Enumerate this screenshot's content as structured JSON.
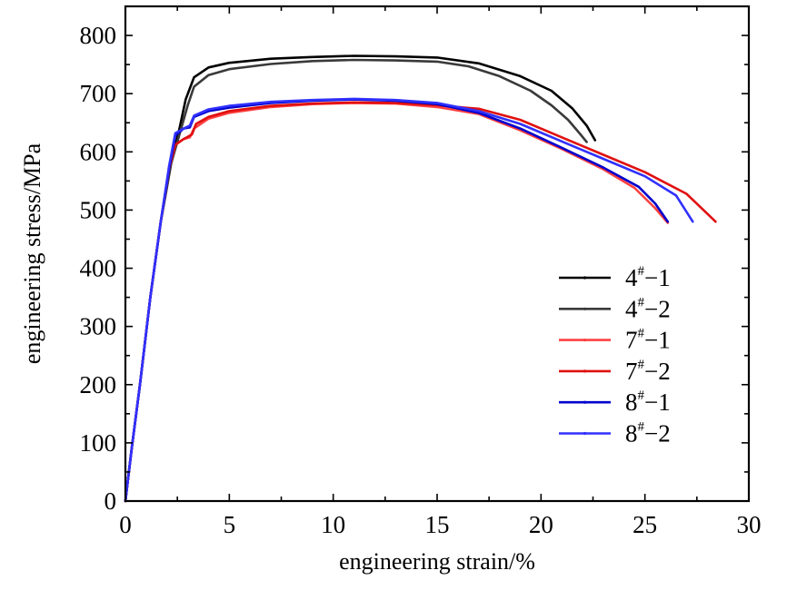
{
  "chart_data": {
    "type": "line",
    "title": "",
    "xlabel": "engineering strain/%",
    "ylabel": "engineering stress/MPa",
    "xlim": [
      0,
      30
    ],
    "ylim": [
      0,
      850
    ],
    "xticks": [
      0,
      5,
      10,
      15,
      20,
      25,
      30
    ],
    "yticks": [
      0,
      100,
      200,
      300,
      400,
      500,
      600,
      700,
      800
    ],
    "grid": false,
    "legend_position": "lower-right",
    "series": [
      {
        "name": "4#−1",
        "base": "4",
        "suffix": "−1",
        "color": "#000000",
        "points": [
          [
            0,
            0
          ],
          [
            0.3,
            90
          ],
          [
            0.7,
            200
          ],
          [
            1.2,
            350
          ],
          [
            1.7,
            480
          ],
          [
            2.2,
            580
          ],
          [
            2.6,
            640
          ],
          [
            2.9,
            690
          ],
          [
            3.3,
            728
          ],
          [
            4,
            745
          ],
          [
            5,
            753
          ],
          [
            7,
            760
          ],
          [
            9,
            763
          ],
          [
            11,
            765
          ],
          [
            13,
            764
          ],
          [
            15,
            762
          ],
          [
            17,
            752
          ],
          [
            19,
            730
          ],
          [
            20.5,
            705
          ],
          [
            21.5,
            675
          ],
          [
            22.2,
            645
          ],
          [
            22.6,
            620
          ]
        ]
      },
      {
        "name": "4#−2",
        "base": "4",
        "suffix": "−2",
        "color": "#3a3a3a",
        "points": [
          [
            0,
            0
          ],
          [
            0.3,
            90
          ],
          [
            0.7,
            200
          ],
          [
            1.2,
            350
          ],
          [
            1.7,
            480
          ],
          [
            2.2,
            580
          ],
          [
            2.6,
            630
          ],
          [
            3,
            680
          ],
          [
            3.3,
            712
          ],
          [
            4,
            732
          ],
          [
            5,
            742
          ],
          [
            7,
            751
          ],
          [
            9,
            756
          ],
          [
            11,
            758
          ],
          [
            13,
            757
          ],
          [
            15,
            755
          ],
          [
            16.5,
            747
          ],
          [
            18,
            730
          ],
          [
            19.5,
            705
          ],
          [
            20.5,
            680
          ],
          [
            21.3,
            655
          ],
          [
            21.9,
            630
          ],
          [
            22.2,
            617
          ]
        ]
      },
      {
        "name": "7#−1",
        "base": "7",
        "suffix": "−1",
        "color": "#ff4040",
        "points": [
          [
            0,
            0
          ],
          [
            0.3,
            90
          ],
          [
            0.7,
            200
          ],
          [
            1.2,
            350
          ],
          [
            1.7,
            480
          ],
          [
            2.1,
            570
          ],
          [
            2.4,
            612
          ],
          [
            2.8,
            622
          ],
          [
            3.1,
            625
          ],
          [
            3.3,
            640
          ],
          [
            4,
            657
          ],
          [
            5,
            667
          ],
          [
            7,
            677
          ],
          [
            9,
            682
          ],
          [
            11,
            684
          ],
          [
            13,
            683
          ],
          [
            15,
            677
          ],
          [
            17,
            665
          ],
          [
            19,
            637
          ],
          [
            21,
            605
          ],
          [
            23,
            570
          ],
          [
            24.5,
            538
          ],
          [
            25.5,
            503
          ],
          [
            26.1,
            478
          ]
        ]
      },
      {
        "name": "7#−2",
        "base": "7",
        "suffix": "−2",
        "color": "#e01010",
        "points": [
          [
            0,
            0
          ],
          [
            0.3,
            90
          ],
          [
            0.7,
            200
          ],
          [
            1.2,
            350
          ],
          [
            1.7,
            480
          ],
          [
            2.1,
            570
          ],
          [
            2.4,
            612
          ],
          [
            2.8,
            622
          ],
          [
            3.2,
            630
          ],
          [
            3.4,
            648
          ],
          [
            4,
            660
          ],
          [
            5,
            670
          ],
          [
            7,
            679
          ],
          [
            9,
            683
          ],
          [
            11,
            685
          ],
          [
            13,
            684
          ],
          [
            15,
            680
          ],
          [
            17,
            674
          ],
          [
            19,
            655
          ],
          [
            21,
            625
          ],
          [
            23,
            595
          ],
          [
            25,
            565
          ],
          [
            27,
            528
          ],
          [
            28.4,
            480
          ]
        ]
      },
      {
        "name": "8#−1",
        "base": "8",
        "suffix": "−1",
        "color": "#0000cc",
        "points": [
          [
            0,
            0
          ],
          [
            0.3,
            90
          ],
          [
            0.7,
            200
          ],
          [
            1.2,
            350
          ],
          [
            1.7,
            480
          ],
          [
            2.1,
            570
          ],
          [
            2.4,
            628
          ],
          [
            2.8,
            640
          ],
          [
            3.1,
            642
          ],
          [
            3.3,
            660
          ],
          [
            4,
            670
          ],
          [
            5,
            676
          ],
          [
            7,
            684
          ],
          [
            9,
            688
          ],
          [
            11,
            690
          ],
          [
            13,
            688
          ],
          [
            15,
            682
          ],
          [
            17,
            667
          ],
          [
            19,
            640
          ],
          [
            21,
            607
          ],
          [
            23,
            573
          ],
          [
            24.7,
            540
          ],
          [
            25.5,
            511
          ],
          [
            26.1,
            480
          ]
        ]
      },
      {
        "name": "8#−2",
        "base": "8",
        "suffix": "−2",
        "color": "#3030ff",
        "points": [
          [
            0,
            0
          ],
          [
            0.3,
            90
          ],
          [
            0.7,
            200
          ],
          [
            1.2,
            350
          ],
          [
            1.7,
            480
          ],
          [
            2.1,
            575
          ],
          [
            2.4,
            632
          ],
          [
            2.8,
            640
          ],
          [
            3.1,
            645
          ],
          [
            3.3,
            662
          ],
          [
            4,
            673
          ],
          [
            5,
            679
          ],
          [
            7,
            686
          ],
          [
            9,
            689
          ],
          [
            11,
            691
          ],
          [
            13,
            689
          ],
          [
            15,
            684
          ],
          [
            17,
            670
          ],
          [
            19,
            648
          ],
          [
            21,
            618
          ],
          [
            23,
            588
          ],
          [
            25,
            558
          ],
          [
            26.5,
            525
          ],
          [
            27.3,
            480
          ]
        ]
      }
    ]
  }
}
